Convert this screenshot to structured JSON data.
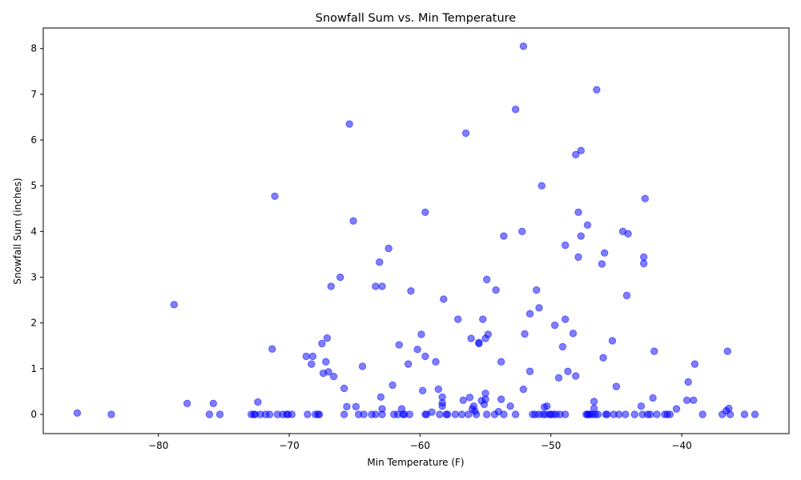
{
  "chart_data": {
    "type": "scatter",
    "title": "Snowfall Sum vs. Min Temperature",
    "xlabel": "Min Temperature (F)",
    "ylabel": "Snowfall Sum (inches)",
    "xlim": [
      -88.8,
      -31.8
    ],
    "ylim": [
      -0.42,
      8.45
    ],
    "xticks": [
      -80,
      -70,
      -60,
      -50,
      -40
    ],
    "xtick_labels": [
      "−80",
      "−70",
      "−60",
      "−50",
      "−40"
    ],
    "yticks": [
      0,
      1,
      2,
      3,
      4,
      5,
      6,
      7,
      8
    ],
    "ytick_labels": [
      "0",
      "1",
      "2",
      "3",
      "4",
      "5",
      "6",
      "7",
      "8"
    ],
    "grid": false,
    "marker_color": "#0000ff",
    "marker_alpha": 0.5,
    "points": [
      [
        -86.2,
        0.03
      ],
      [
        -83.6,
        0.0
      ],
      [
        -78.8,
        2.4
      ],
      [
        -77.8,
        0.24
      ],
      [
        -76.1,
        0.0
      ],
      [
        -75.8,
        0.24
      ],
      [
        -75.3,
        0.0
      ],
      [
        -72.9,
        0.0
      ],
      [
        -72.7,
        0.0
      ],
      [
        -72.6,
        0.0
      ],
      [
        -72.4,
        0.27
      ],
      [
        -72.2,
        0.0
      ],
      [
        -71.8,
        0.0
      ],
      [
        -71.5,
        0.0
      ],
      [
        -71.3,
        1.43
      ],
      [
        -71.1,
        4.77
      ],
      [
        -70.9,
        0.0
      ],
      [
        -70.5,
        0.0
      ],
      [
        -70.2,
        0.0
      ],
      [
        -70.1,
        0.0
      ],
      [
        -69.8,
        0.0
      ],
      [
        -68.7,
        1.27
      ],
      [
        -68.6,
        0.0
      ],
      [
        -68.3,
        1.1
      ],
      [
        -68.2,
        1.27
      ],
      [
        -68.0,
        0.0
      ],
      [
        -67.8,
        0.0
      ],
      [
        -67.7,
        0.0
      ],
      [
        -67.5,
        1.55
      ],
      [
        -67.4,
        0.9
      ],
      [
        -67.2,
        1.15
      ],
      [
        -67.1,
        1.67
      ],
      [
        -67.0,
        0.93
      ],
      [
        -66.8,
        2.8
      ],
      [
        -66.6,
        0.83
      ],
      [
        -66.1,
        3.0
      ],
      [
        -65.8,
        0.57
      ],
      [
        -65.8,
        0.0
      ],
      [
        -65.6,
        0.17
      ],
      [
        -65.4,
        6.35
      ],
      [
        -65.1,
        4.23
      ],
      [
        -64.9,
        0.17
      ],
      [
        -64.7,
        0.0
      ],
      [
        -64.4,
        1.05
      ],
      [
        -64.3,
        0.0
      ],
      [
        -63.7,
        0.0
      ],
      [
        -63.4,
        0.0
      ],
      [
        -63.4,
        2.8
      ],
      [
        -63.1,
        3.33
      ],
      [
        -63.0,
        0.38
      ],
      [
        -62.9,
        0.12
      ],
      [
        -62.9,
        2.8
      ],
      [
        -62.9,
        0.0
      ],
      [
        -62.4,
        3.63
      ],
      [
        -62.1,
        0.64
      ],
      [
        -62.0,
        0.0
      ],
      [
        -61.7,
        0.0
      ],
      [
        -61.6,
        1.52
      ],
      [
        -61.4,
        0.12
      ],
      [
        -61.3,
        0.0
      ],
      [
        -61.2,
        0.0
      ],
      [
        -60.9,
        1.1
      ],
      [
        -60.8,
        0.0
      ],
      [
        -60.7,
        2.7
      ],
      [
        -60.2,
        1.42
      ],
      [
        -59.9,
        1.75
      ],
      [
        -59.8,
        0.52
      ],
      [
        -59.6,
        4.42
      ],
      [
        -59.6,
        1.27
      ],
      [
        -59.6,
        0.0
      ],
      [
        -59.5,
        0.0
      ],
      [
        -59.1,
        0.05
      ],
      [
        -58.8,
        1.15
      ],
      [
        -58.6,
        0.55
      ],
      [
        -58.5,
        0.0
      ],
      [
        -58.3,
        0.38
      ],
      [
        -58.3,
        0.18
      ],
      [
        -58.2,
        2.52
      ],
      [
        -58.3,
        0.25
      ],
      [
        -58.0,
        0.0
      ],
      [
        -57.9,
        0.0
      ],
      [
        -57.3,
        0.0
      ],
      [
        -57.1,
        2.08
      ],
      [
        -56.8,
        0.0
      ],
      [
        -56.7,
        0.31
      ],
      [
        -56.5,
        6.15
      ],
      [
        -56.3,
        0.0
      ],
      [
        -56.2,
        0.37
      ],
      [
        -56.1,
        1.66
      ],
      [
        -56.0,
        0.12
      ],
      [
        -55.9,
        0.18
      ],
      [
        -55.8,
        0.07
      ],
      [
        -55.7,
        0.0
      ],
      [
        -55.5,
        1.57
      ],
      [
        -55.5,
        1.55
      ],
      [
        -55.3,
        0.3
      ],
      [
        -55.2,
        2.08
      ],
      [
        -55.1,
        0.22
      ],
      [
        -55.0,
        1.66
      ],
      [
        -55.0,
        0.46
      ],
      [
        -55.0,
        0.33
      ],
      [
        -54.9,
        0.0
      ],
      [
        -54.9,
        2.95
      ],
      [
        -54.8,
        1.75
      ],
      [
        -54.3,
        0.0
      ],
      [
        -54.2,
        2.72
      ],
      [
        -54.0,
        0.06
      ],
      [
        -53.8,
        0.33
      ],
      [
        -53.8,
        1.15
      ],
      [
        -53.6,
        3.9
      ],
      [
        -53.6,
        0.0
      ],
      [
        -53.1,
        0.18
      ],
      [
        -52.7,
        0.0
      ],
      [
        -52.7,
        6.67
      ],
      [
        -52.2,
        4.0
      ],
      [
        -52.1,
        8.05
      ],
      [
        -52.1,
        0.55
      ],
      [
        -52.0,
        1.76
      ],
      [
        -51.6,
        0.94
      ],
      [
        -51.6,
        2.2
      ],
      [
        -51.4,
        0.0
      ],
      [
        -51.2,
        0.0
      ],
      [
        -51.1,
        2.72
      ],
      [
        -50.9,
        2.33
      ],
      [
        -50.9,
        0.0
      ],
      [
        -50.7,
        5.0
      ],
      [
        -50.6,
        0.0
      ],
      [
        -50.5,
        0.16
      ],
      [
        -50.4,
        0.0
      ],
      [
        -50.3,
        0.18
      ],
      [
        -50.1,
        0.0
      ],
      [
        -50.0,
        0.0
      ],
      [
        -49.8,
        0.0
      ],
      [
        -49.7,
        1.95
      ],
      [
        -49.6,
        0.0
      ],
      [
        -49.4,
        0.8
      ],
      [
        -49.3,
        0.0
      ],
      [
        -49.1,
        1.48
      ],
      [
        -48.9,
        0.0
      ],
      [
        -48.9,
        3.7
      ],
      [
        -48.9,
        2.08
      ],
      [
        -48.7,
        0.94
      ],
      [
        -48.3,
        1.77
      ],
      [
        -48.1,
        5.68
      ],
      [
        -48.1,
        0.84
      ],
      [
        -47.9,
        3.44
      ],
      [
        -47.9,
        4.42
      ],
      [
        -47.7,
        5.77
      ],
      [
        -47.7,
        3.9
      ],
      [
        -47.3,
        0.0
      ],
      [
        -47.2,
        0.0
      ],
      [
        -47.2,
        4.14
      ],
      [
        -47.1,
        0.0
      ],
      [
        -47.0,
        0.0
      ],
      [
        -46.8,
        0.0
      ],
      [
        -46.7,
        0.28
      ],
      [
        -46.7,
        0.13
      ],
      [
        -46.6,
        0.0
      ],
      [
        -46.5,
        7.1
      ],
      [
        -46.4,
        0.0
      ],
      [
        -46.1,
        3.29
      ],
      [
        -46.0,
        1.24
      ],
      [
        -45.9,
        3.53
      ],
      [
        -45.8,
        0.0
      ],
      [
        -45.7,
        0.0
      ],
      [
        -45.3,
        1.61
      ],
      [
        -45.2,
        0.0
      ],
      [
        -45.0,
        0.61
      ],
      [
        -44.8,
        0.0
      ],
      [
        -44.5,
        4.0
      ],
      [
        -44.3,
        0.0
      ],
      [
        -44.2,
        2.6
      ],
      [
        -44.1,
        3.95
      ],
      [
        -43.6,
        0.0
      ],
      [
        -43.1,
        0.18
      ],
      [
        -43.0,
        0.0
      ],
      [
        -42.9,
        3.44
      ],
      [
        -42.9,
        3.3
      ],
      [
        -42.8,
        4.72
      ],
      [
        -42.6,
        0.0
      ],
      [
        -42.4,
        0.0
      ],
      [
        -42.2,
        0.36
      ],
      [
        -42.1,
        1.38
      ],
      [
        -41.9,
        0.0
      ],
      [
        -41.3,
        0.0
      ],
      [
        -41.1,
        0.0
      ],
      [
        -40.9,
        0.0
      ],
      [
        -40.4,
        0.12
      ],
      [
        -39.6,
        0.31
      ],
      [
        -39.5,
        0.71
      ],
      [
        -39.1,
        0.31
      ],
      [
        -39.0,
        1.1
      ],
      [
        -38.4,
        0.0
      ],
      [
        -36.9,
        0.0
      ],
      [
        -36.6,
        0.08
      ],
      [
        -36.5,
        1.38
      ],
      [
        -36.4,
        0.13
      ],
      [
        -36.3,
        0.0
      ],
      [
        -35.2,
        0.0
      ],
      [
        -34.4,
        0.0
      ]
    ]
  }
}
